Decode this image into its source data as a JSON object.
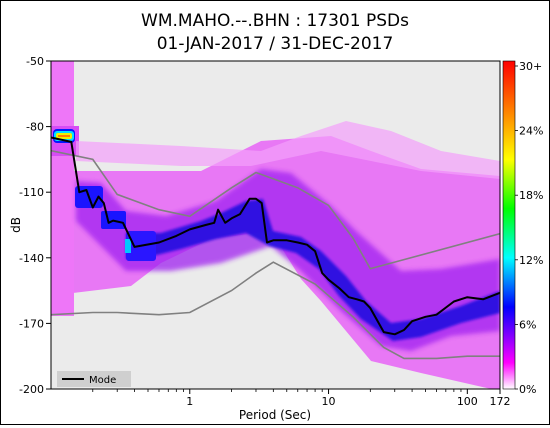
{
  "chart_data": {
    "type": "heatmap",
    "title_line1": "WM.MAHO.--.BHN : 17301 PSDs",
    "title_line2": "01-JAN-2017 / 31-DEC-2017",
    "xlabel": "Period (Sec)",
    "ylabel": "dB",
    "x_scale": "log",
    "xlim": [
      0.1,
      172
    ],
    "ylim": [
      -200,
      -50
    ],
    "x_ticks": [
      {
        "value": 1,
        "label": "1"
      },
      {
        "value": 10,
        "label": "10"
      },
      {
        "value": 100,
        "label": "100"
      },
      {
        "value": 172,
        "label": "172"
      }
    ],
    "y_ticks": [
      {
        "value": -50,
        "label": "-50"
      },
      {
        "value": -80,
        "label": "-80"
      },
      {
        "value": -110,
        "label": "-110"
      },
      {
        "value": -140,
        "label": "-140"
      },
      {
        "value": -170,
        "label": "-170"
      },
      {
        "value": -200,
        "label": "-200"
      }
    ],
    "colorbar": {
      "labels": [
        "30+",
        "24%",
        "18%",
        "12%",
        "6%",
        "0%"
      ],
      "colors": [
        "#ff0000",
        "#ff8000",
        "#ffff00",
        "#00ff00",
        "#00ffff",
        "#0000ff",
        "#ff00ff",
        "#ffffff"
      ]
    },
    "legend": {
      "label": "Mode",
      "position": "bottom-left"
    },
    "series": [
      {
        "name": "Mode",
        "color": "#000000",
        "x": [
          0.1,
          0.14,
          0.16,
          0.18,
          0.2,
          0.22,
          0.24,
          0.26,
          0.28,
          0.33,
          0.4,
          0.6,
          0.8,
          1.0,
          1.3,
          1.5,
          1.6,
          1.8,
          2.0,
          2.3,
          2.7,
          3.0,
          3.3,
          3.6,
          4,
          5,
          6,
          7,
          8,
          9,
          10,
          12,
          14,
          16,
          18,
          20,
          25,
          30,
          35,
          40,
          50,
          60,
          80,
          100,
          130,
          172
        ],
        "y": [
          -85,
          -87,
          -110,
          -109,
          -117,
          -112,
          -115,
          -124,
          -123,
          -124,
          -135,
          -133,
          -130,
          -127,
          -125,
          -124,
          -118,
          -124,
          -122,
          -120,
          -113,
          -113,
          -115,
          -133,
          -132,
          -132,
          -133,
          -134,
          -137,
          -147,
          -150,
          -154,
          -158,
          -159,
          -160,
          -163,
          -174,
          -175,
          -173,
          -169,
          -167,
          -166,
          -160,
          -158,
          -159,
          -156
        ]
      }
    ],
    "reference_lines": [
      {
        "name": "",
        "color": "#808080",
        "x": [
          0.1,
          0.2,
          0.3,
          0.6,
          1.0,
          2.0,
          3.0,
          6.0,
          10,
          15,
          20,
          172
        ],
        "y": [
          -91,
          -95,
          -111,
          -118,
          -121,
          -108,
          -101,
          -108,
          -116,
          -131,
          -145,
          -129
        ]
      },
      {
        "name": "",
        "color": "#808080",
        "x": [
          0.1,
          0.2,
          0.3,
          0.6,
          1.0,
          2.0,
          3.0,
          4.0,
          8.0,
          15,
          25,
          35,
          60,
          100,
          172
        ],
        "y": [
          -166,
          -165,
          -165,
          -166,
          -165,
          -155,
          -147,
          -142,
          -152,
          -167,
          -181,
          -186,
          -186,
          -185,
          -185
        ]
      }
    ],
    "density_bands": [
      {
        "x": [
          0.12,
          0.15
        ],
        "y": [
          -90,
          -80
        ],
        "color": "#0018ff"
      },
      {
        "x": [
          0.12,
          0.15
        ],
        "y": [
          -88,
          -82
        ],
        "color": "#00e0ff"
      },
      {
        "x": [
          0.12,
          0.15
        ],
        "y": [
          -87,
          -83
        ],
        "color": "#f0f000"
      },
      {
        "x": [
          0.155,
          0.28
        ],
        "y": [
          -125,
          -104
        ],
        "color": "#1a10ff"
      },
      {
        "x": [
          0.28,
          0.37
        ],
        "y": [
          -127,
          -118
        ],
        "color": "#1a10ff"
      },
      {
        "x": [
          0.37,
          1.0
        ],
        "y": [
          -140,
          -125
        ],
        "color": "#2f10ff"
      },
      {
        "x": [
          1.0,
          3.3
        ],
        "y": [
          -130,
          -112
        ],
        "color": "#2f10ff"
      },
      {
        "x": [
          3.3,
          8
        ],
        "y": [
          -140,
          -125
        ],
        "color": "#2f10ff"
      },
      {
        "x": [
          8,
          20
        ],
        "y": [
          -163,
          -140
        ],
        "color": "#2f10ff"
      },
      {
        "x": [
          20,
          60
        ],
        "y": [
          -180,
          -160
        ],
        "color": "#2f10ff"
      },
      {
        "x": [
          60,
          172
        ],
        "y": [
          -170,
          -148
        ],
        "color": "#2f10ff"
      },
      {
        "x": [
          0.37,
          1.0
        ],
        "y": [
          -137,
          -128
        ],
        "color": "#0000d8"
      },
      {
        "x": [
          1.0,
          3.3
        ],
        "y": [
          -127,
          -115
        ],
        "color": "#0000d8"
      },
      {
        "x": [
          8,
          20
        ],
        "y": [
          -159,
          -144
        ],
        "color": "#0000d8"
      },
      {
        "x": [
          20,
          60
        ],
        "y": [
          -178,
          -164
        ],
        "color": "#0000d8"
      },
      {
        "x": [
          0.37,
          0.5
        ],
        "y": [
          -138,
          -133
        ],
        "color": "#00c8ff"
      }
    ]
  }
}
